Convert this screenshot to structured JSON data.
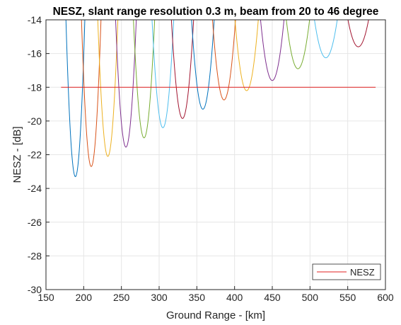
{
  "chart_data": {
    "type": "line",
    "title": "NESZ, slant range resolution 0.3 m, beam from 20 to 46 degree",
    "xlabel": "Ground Range - [km]",
    "ylabel": "NESZ - [dB]",
    "xlim": [
      150,
      600
    ],
    "ylim": [
      -30,
      -14
    ],
    "xticks": [
      150,
      200,
      250,
      300,
      350,
      400,
      450,
      500,
      550,
      600
    ],
    "yticks": [
      -30,
      -28,
      -26,
      -24,
      -22,
      -20,
      -18,
      -16,
      -14
    ],
    "xtick_labels": [
      "150",
      "200",
      "250",
      "300",
      "350",
      "400",
      "450",
      "500",
      "550",
      "600"
    ],
    "ytick_labels": [
      "-30",
      "-28",
      "-26",
      "-24",
      "-22",
      "-20",
      "-18",
      "-16",
      "-14"
    ],
    "grid": true,
    "legend": {
      "placement": "bottom-right",
      "entries": [
        "NESZ"
      ]
    },
    "beams": [
      {
        "center_km": 189,
        "min_db": -23.3,
        "half_width_km": 13.5,
        "color": "#0072BD"
      },
      {
        "center_km": 210,
        "min_db": -22.7,
        "half_width_km": 14,
        "color": "#D95319"
      },
      {
        "center_km": 232,
        "min_db": -22.1,
        "half_width_km": 14.5,
        "color": "#EDB120"
      },
      {
        "center_km": 256,
        "min_db": -21.55,
        "half_width_km": 15,
        "color": "#7E2F8E"
      },
      {
        "center_km": 280,
        "min_db": -21.0,
        "half_width_km": 15.5,
        "color": "#77AC30"
      },
      {
        "center_km": 305,
        "min_db": -20.4,
        "half_width_km": 16,
        "color": "#4DBEEE"
      },
      {
        "center_km": 331,
        "min_db": -19.85,
        "half_width_km": 16.5,
        "color": "#A2142F"
      },
      {
        "center_km": 358,
        "min_db": -19.3,
        "half_width_km": 17,
        "color": "#0072BD"
      },
      {
        "center_km": 386,
        "min_db": -18.75,
        "half_width_km": 17.5,
        "color": "#D95319"
      },
      {
        "center_km": 416,
        "min_db": -18.2,
        "half_width_km": 18,
        "color": "#EDB120"
      },
      {
        "center_km": 450,
        "min_db": -17.6,
        "half_width_km": 18.5,
        "color": "#7E2F8E"
      },
      {
        "center_km": 484,
        "min_db": -16.9,
        "half_width_km": 19,
        "color": "#77AC30"
      },
      {
        "center_km": 521,
        "min_db": -16.25,
        "half_width_km": 19.5,
        "color": "#4DBEEE"
      },
      {
        "center_km": 564,
        "min_db": -15.6,
        "half_width_km": 19,
        "color": "#A2142F"
      }
    ],
    "series": [
      {
        "name": "NESZ",
        "x": [
          170,
          587
        ],
        "y": [
          -18,
          -18
        ],
        "color": "#E02020"
      }
    ]
  }
}
